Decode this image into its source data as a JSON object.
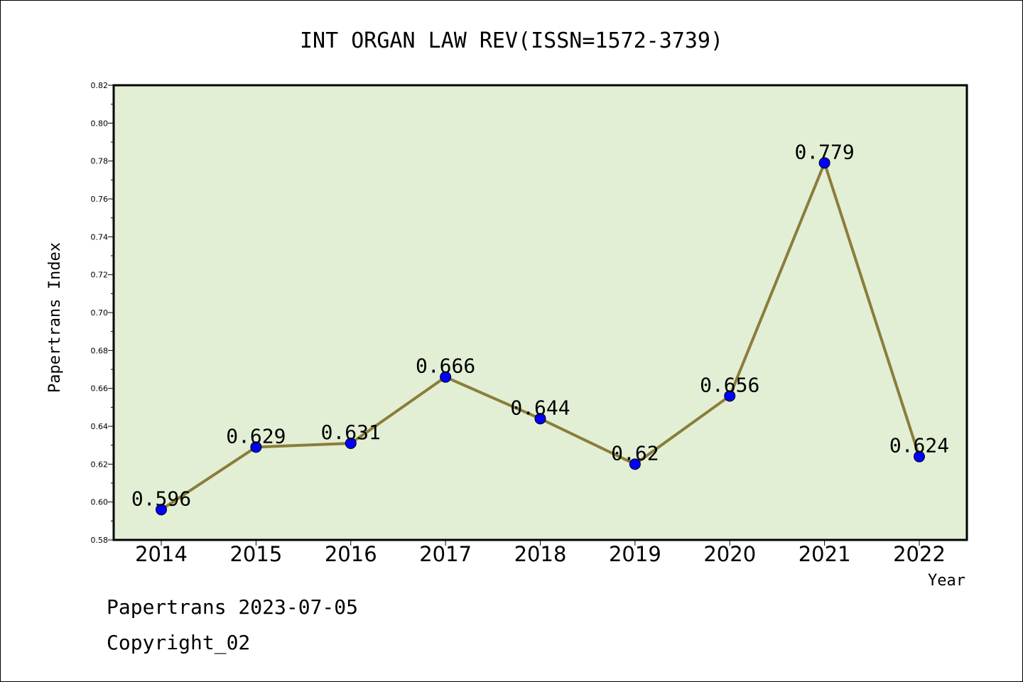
{
  "chart_data": {
    "type": "line",
    "title": "INT ORGAN LAW REV(ISSN=1572-3739)",
    "xlabel": "Year",
    "ylabel": "Papertrans Index",
    "categories": [
      "2014",
      "2015",
      "2016",
      "2017",
      "2018",
      "2019",
      "2020",
      "2021",
      "2022"
    ],
    "values": [
      0.596,
      0.629,
      0.631,
      0.666,
      0.644,
      0.62,
      0.656,
      0.779,
      0.624
    ],
    "data_labels": [
      "0.596",
      "0.629",
      "0.631",
      "0.666",
      "0.644",
      "0.62",
      "0.656",
      "0.779",
      "0.624"
    ],
    "ylim": [
      0.58,
      0.82
    ],
    "yticks": [
      0.58,
      0.6,
      0.62,
      0.64,
      0.66,
      0.68,
      0.7,
      0.72,
      0.74,
      0.76,
      0.78,
      0.8,
      0.82
    ],
    "ytick_labels": [
      "0.58",
      "0.60",
      "0.62",
      "0.64",
      "0.66",
      "0.68",
      "0.70",
      "0.72",
      "0.74",
      "0.76",
      "0.78",
      "0.80",
      "0.82"
    ],
    "grid": false,
    "legend": "none",
    "colors": {
      "plot_background": "#e2efd5",
      "line": "#8b7d3a",
      "marker": "#0000ff"
    }
  },
  "footer": {
    "line1": "Papertrans 2023-07-05",
    "line2": "Copyright_02"
  }
}
